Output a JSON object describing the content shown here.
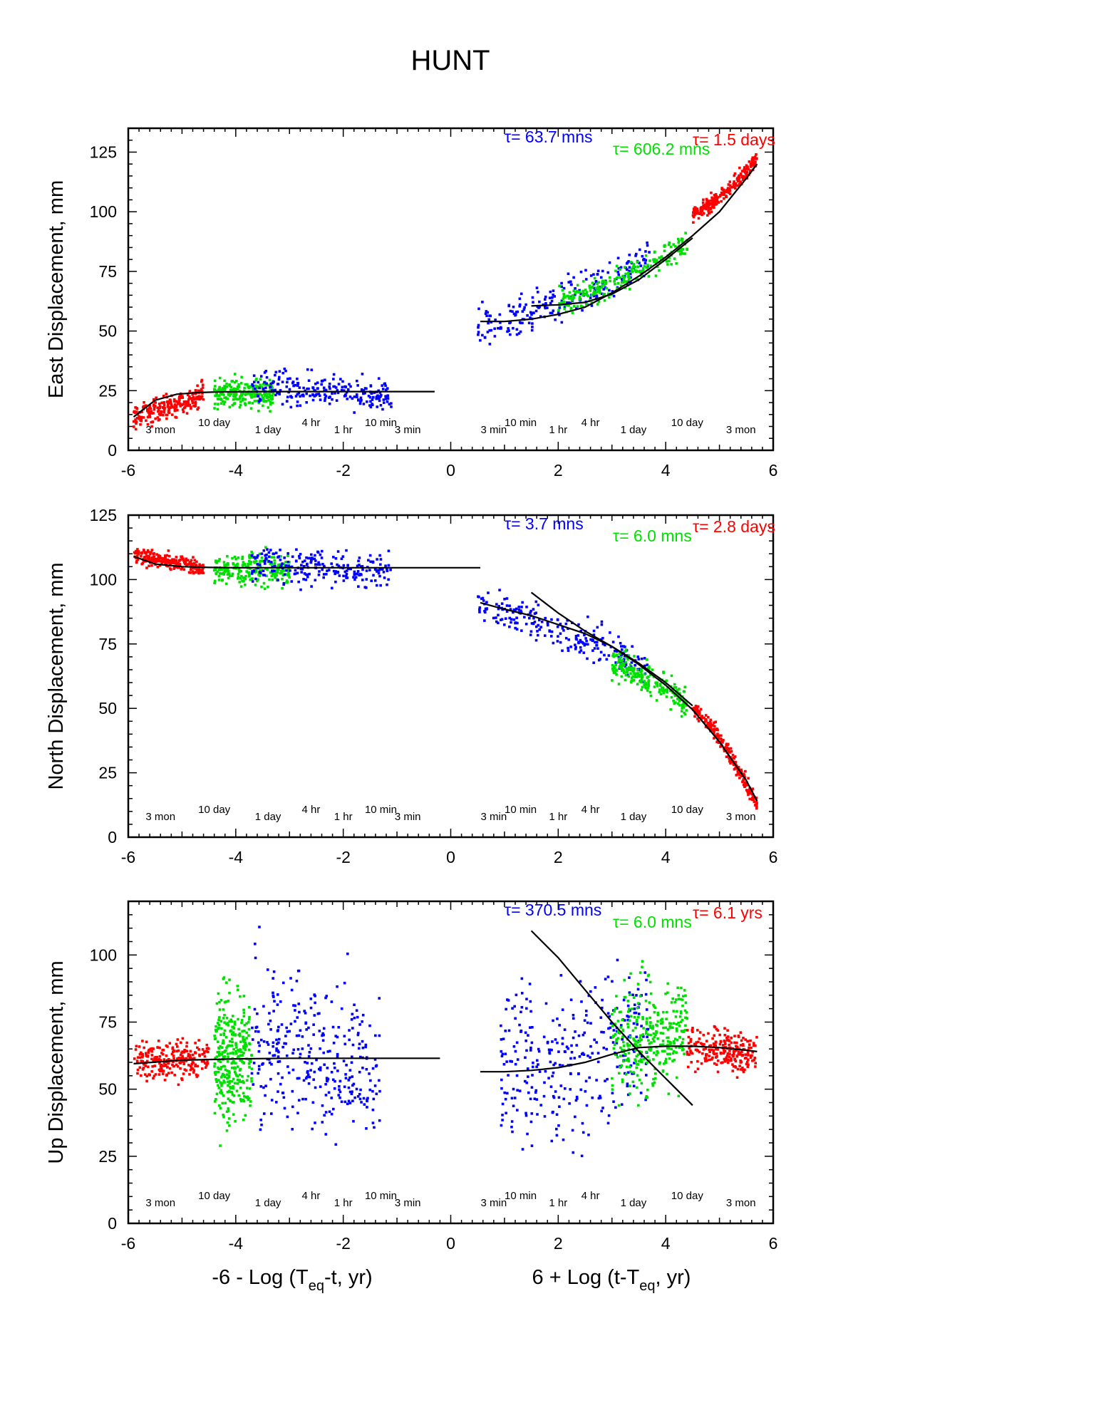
{
  "title": "HUNT",
  "xlabel_left": {
    "pre": "-6 - Log (T",
    "sub": "eq",
    "post": "-t, yr)"
  },
  "xlabel_right": {
    "pre": "6 + Log (t-T",
    "sub": "eq",
    "post": ", yr)"
  },
  "x_ticks": [
    "-6",
    "-4",
    "-2",
    "0",
    "2",
    "4",
    "6"
  ],
  "colors": {
    "red": "#ff0000",
    "green": "#00e000",
    "blue": "#0000ff",
    "fit": "#000000"
  },
  "chart_data": [
    {
      "type": "scatter",
      "ylabel": "East Displacement, mm",
      "xlim": [
        -6,
        6
      ],
      "ylim": [
        0,
        135
      ],
      "y_ticks": [
        "0",
        "25",
        "50",
        "75",
        "100",
        "125"
      ],
      "time_labels": [
        "3 mon",
        "10 day",
        "1 day",
        "4 hr",
        "1 hr",
        "10 min",
        "3 min",
        "3 min",
        "10 min",
        "1 hr",
        "4 hr",
        "1 day",
        "10 day",
        "3 mon"
      ],
      "tau_labels": [
        {
          "text": "τ= 63.7 mns",
          "color": "blue"
        },
        {
          "text": "τ= 606.2 mns",
          "color": "green"
        },
        {
          "text": "τ= 1.5 days",
          "color": "red"
        }
      ],
      "series": [
        {
          "color": "red",
          "side": "pre",
          "x_range": [
            -5.9,
            -4.6
          ],
          "y_start": 14,
          "y_end": 24,
          "spread": 2.5
        },
        {
          "color": "green",
          "side": "pre",
          "x_range": [
            -4.4,
            -3.3
          ],
          "y_start": 24,
          "y_end": 24,
          "spread": 3
        },
        {
          "color": "blue",
          "side": "pre",
          "x_range": [
            -3.7,
            -1.1
          ],
          "y_start": 26,
          "y_end": 23,
          "spread": 3.5
        },
        {
          "color": "blue",
          "side": "post",
          "x_range": [
            0.5,
            3.7
          ],
          "y_start": 52,
          "y_end": 80,
          "spread": 4
        },
        {
          "color": "green",
          "side": "post",
          "x_range": [
            2.0,
            4.4
          ],
          "y_start": 62,
          "y_end": 87,
          "spread": 3
        },
        {
          "color": "red",
          "side": "post",
          "x_range": [
            4.5,
            5.7
          ],
          "y_start": 99,
          "y_end": 122,
          "spread": 1.5
        }
      ],
      "fits": [
        {
          "x": [
            -5.9,
            -5.5,
            -5.1,
            -4.7,
            -4.3,
            -3.5,
            -2.5,
            -1.5,
            -0.3
          ],
          "y": [
            14,
            21,
            23.5,
            24.2,
            24.5,
            24.6,
            24.6,
            24.6,
            24.6
          ]
        },
        {
          "x": [
            0.55,
            1.0,
            1.5,
            2.0,
            2.5,
            3.0,
            3.5,
            4.0,
            4.5,
            5.0,
            5.5,
            5.7
          ],
          "y": [
            54,
            54,
            55,
            57,
            60,
            66,
            73,
            81,
            90,
            100,
            114,
            120
          ]
        },
        {
          "x": [
            1.5,
            2.0,
            2.5,
            3.0,
            3.5,
            4.0,
            4.5
          ],
          "y": [
            60.5,
            61,
            62,
            65.5,
            71.5,
            80,
            89
          ]
        }
      ]
    },
    {
      "type": "scatter",
      "ylabel": "North Displacement, mm",
      "xlim": [
        -6,
        6
      ],
      "ylim": [
        0,
        125
      ],
      "y_ticks": [
        "0",
        "25",
        "50",
        "75",
        "100",
        "125"
      ],
      "time_labels": [
        "3 mon",
        "10 day",
        "1 day",
        "4 hr",
        "1 hr",
        "10 min",
        "3 min",
        "3 min",
        "10 min",
        "1 hr",
        "4 hr",
        "1 day",
        "10 day",
        "3 mon"
      ],
      "tau_labels": [
        {
          "text": "τ= 3.7 mns",
          "color": "blue"
        },
        {
          "text": "τ= 6.0 mns",
          "color": "green"
        },
        {
          "text": "τ= 2.8 days",
          "color": "red"
        }
      ],
      "series": [
        {
          "color": "red",
          "side": "pre",
          "x_range": [
            -5.9,
            -4.6
          ],
          "y_start": 109,
          "y_end": 104,
          "spread": 1.5
        },
        {
          "color": "green",
          "side": "pre",
          "x_range": [
            -4.4,
            -3.0
          ],
          "y_start": 104,
          "y_end": 104,
          "spread": 3
        },
        {
          "color": "blue",
          "side": "pre",
          "x_range": [
            -3.7,
            -1.1
          ],
          "y_start": 106,
          "y_end": 103,
          "spread": 3.5
        },
        {
          "color": "blue",
          "side": "post",
          "x_range": [
            0.5,
            3.7
          ],
          "y_start": 90,
          "y_end": 65,
          "spread": 3.5
        },
        {
          "color": "green",
          "side": "post",
          "x_range": [
            3.0,
            4.4
          ],
          "y_start": 67,
          "y_end": 52,
          "spread": 3
        },
        {
          "color": "red",
          "side": "post",
          "x_range": [
            4.5,
            5.7
          ],
          "y_start": 50,
          "y_end": 13,
          "spread": 1.5
        }
      ],
      "fits": [
        {
          "x": [
            -5.9,
            -5.5,
            -5.0,
            -4.5,
            -4.0,
            -3.0,
            -2.0,
            -1.0,
            0.55
          ],
          "y": [
            109,
            106,
            105,
            104.7,
            104.6,
            104.6,
            104.6,
            104.6,
            104.6
          ]
        },
        {
          "x": [
            0.55,
            1.0,
            1.5,
            2.0,
            2.5,
            3.0,
            3.5,
            4.0,
            4.5
          ],
          "y": [
            91,
            88.5,
            86,
            82.5,
            79,
            74,
            67.5,
            60,
            51
          ]
        },
        {
          "x": [
            1.5,
            2.0,
            2.5,
            3.0,
            3.5,
            4.0,
            4.5,
            5.0,
            5.5,
            5.7
          ],
          "y": [
            95,
            87,
            80,
            74,
            67,
            59,
            49.5,
            37,
            22,
            14
          ]
        }
      ]
    },
    {
      "type": "scatter",
      "ylabel": "Up Displacement, mm",
      "xlim": [
        -6,
        6
      ],
      "ylim": [
        0,
        120
      ],
      "y_ticks": [
        "0",
        "25",
        "50",
        "75",
        "100"
      ],
      "time_labels": [
        "3 mon",
        "10 day",
        "1 day",
        "4 hr",
        "1 hr",
        "10 min",
        "3 min",
        "3 min",
        "10 min",
        "1 hr",
        "4 hr",
        "1 day",
        "10 day",
        "3 mon"
      ],
      "tau_labels": [
        {
          "text": "τ= 370.5 mns",
          "color": "blue"
        },
        {
          "text": "τ= 6.0 mns",
          "color": "green"
        },
        {
          "text": "τ= 6.1 yrs",
          "color": "red"
        }
      ],
      "series": [
        {
          "color": "red",
          "side": "pre",
          "x_range": [
            -5.9,
            -4.5
          ],
          "y_start": 61,
          "y_end": 61,
          "spread": 3.5
        },
        {
          "color": "green",
          "side": "pre",
          "x_range": [
            -4.4,
            -3.7
          ],
          "y_start": 62,
          "y_end": 62,
          "spread": 12
        },
        {
          "color": "blue",
          "side": "pre",
          "x_range": [
            -3.7,
            -1.3
          ],
          "y_start": 70,
          "y_end": 52,
          "spread": 14
        },
        {
          "color": "blue",
          "side": "post",
          "x_range": [
            0.9,
            3.7
          ],
          "y_start": 55,
          "y_end": 72,
          "spread": 15
        },
        {
          "color": "green",
          "side": "post",
          "x_range": [
            3.0,
            4.4
          ],
          "y_start": 68,
          "y_end": 72,
          "spread": 10
        },
        {
          "color": "red",
          "side": "post",
          "x_range": [
            4.4,
            5.7
          ],
          "y_start": 66,
          "y_end": 63,
          "spread": 4
        }
      ],
      "fits": [
        {
          "x": [
            -5.9,
            -5.0,
            -4.0,
            -3.0,
            -2.0,
            -1.0,
            -0.2
          ],
          "y": [
            59.5,
            60.8,
            61.3,
            61.5,
            61.5,
            61.5,
            61.5
          ]
        },
        {
          "x": [
            0.55,
            1.0,
            1.5,
            2.0,
            2.5,
            3.0,
            3.5,
            4.0,
            4.5,
            5.0,
            5.5,
            5.7
          ],
          "y": [
            56.5,
            56.5,
            57,
            58,
            60,
            63,
            65.5,
            66,
            66,
            65.5,
            64.5,
            64
          ]
        },
        {
          "x": [
            1.5,
            2.0,
            2.5,
            3.0,
            3.5,
            4.0,
            4.5
          ],
          "y": [
            109,
            99,
            87,
            75,
            64,
            54,
            44
          ]
        }
      ]
    }
  ]
}
